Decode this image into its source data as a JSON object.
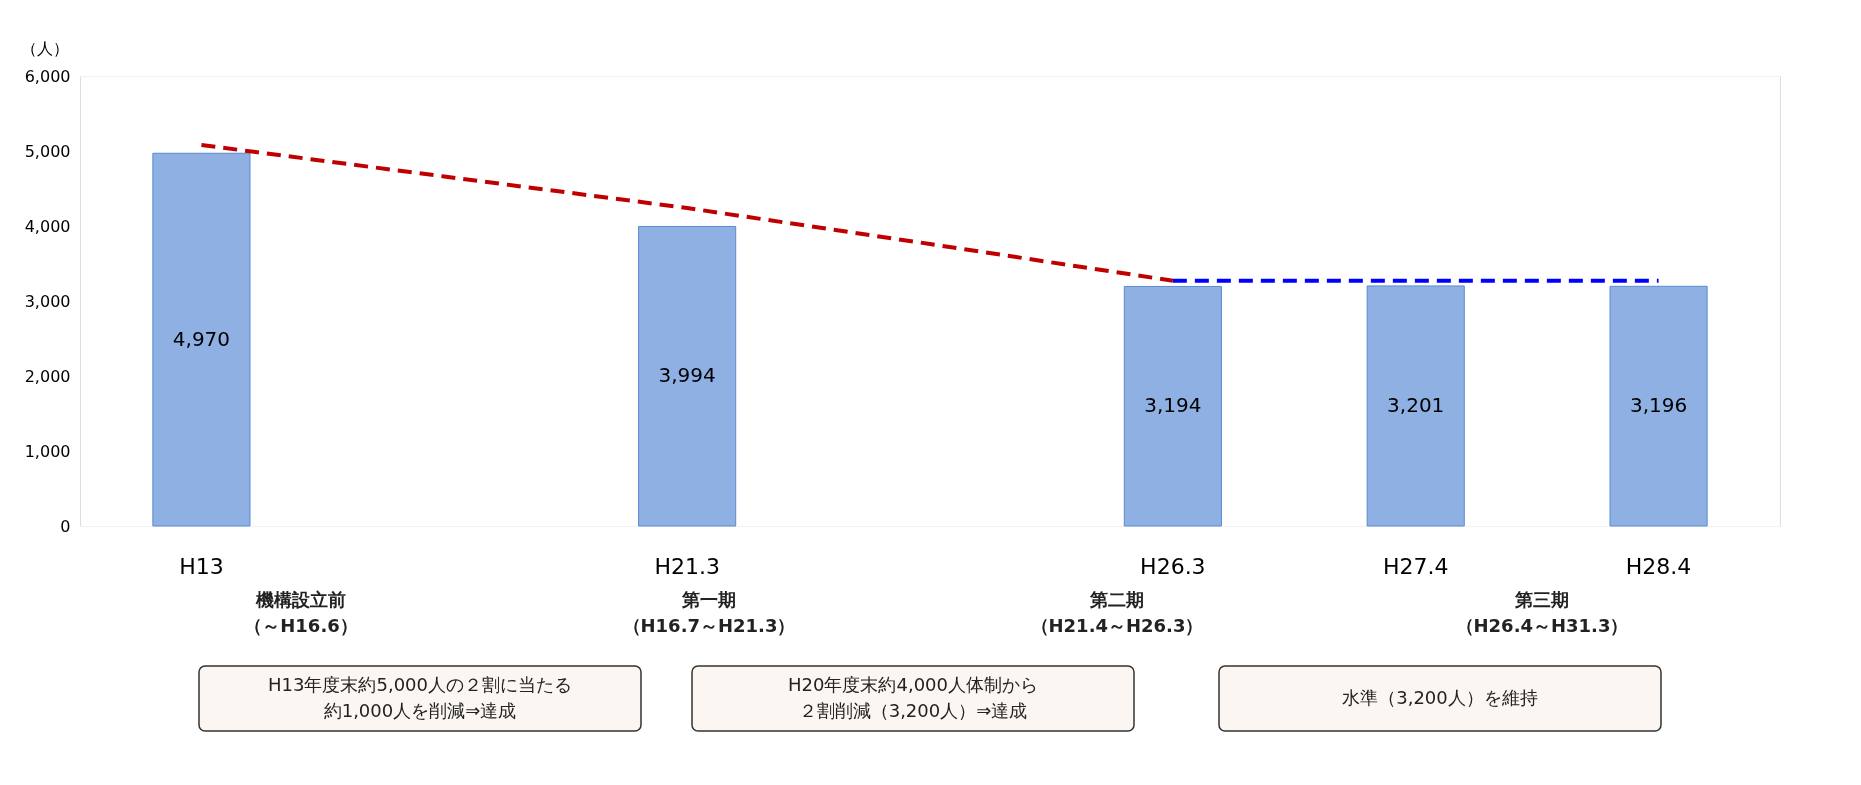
{
  "chart_data": {
    "type": "bar",
    "ylabel": "（人）",
    "categories": [
      "H13",
      null,
      "H21.3",
      null,
      "H26.3",
      "H27.4",
      "H28.4"
    ],
    "series": [
      {
        "color": "#8fb0e3",
        "values": [
          4970,
          null,
          3994,
          null,
          3194,
          3201,
          3196
        ],
        "value_labels": [
          "4,970",
          null,
          "3,994",
          null,
          "3,194",
          "3,201",
          "3,196"
        ]
      },
      {
        "type": "line",
        "color": "#c00000",
        "line_style": "dashed",
        "values": [
          5080,
          4660,
          4240,
          3760,
          3270,
          null,
          null
        ]
      },
      {
        "type": "line",
        "color": "#0000ff",
        "line_style": "dashed",
        "values": [
          null,
          null,
          null,
          null,
          3270,
          3270,
          3270
        ]
      }
    ],
    "ylim": [
      0,
      6000
    ],
    "yticks": [
      {
        "value": 0,
        "label": "0"
      },
      {
        "value": 1000,
        "label": "1,000"
      },
      {
        "value": 2000,
        "label": "2,000"
      },
      {
        "value": 3000,
        "label": "3,000"
      },
      {
        "value": 4000,
        "label": "4,000"
      },
      {
        "value": 5000,
        "label": "5,000"
      },
      {
        "value": 6000,
        "label": "6,000"
      }
    ],
    "grid": "y",
    "annotations": [
      "機構設立前",
      "（～H16.6）",
      "第一期",
      "（H16.7～H21.3）",
      "第二期",
      "（H21.4～H26.3）",
      "第三期",
      "（H26.4～H31.3）",
      "H13年度末約5,000人の２割に当たる",
      "約1,000人を削減⇒達成",
      "H20年度末約4,000人体制から",
      "２割削減（3,200人）⇒達成",
      "水準（3,200人）を維持"
    ]
  }
}
